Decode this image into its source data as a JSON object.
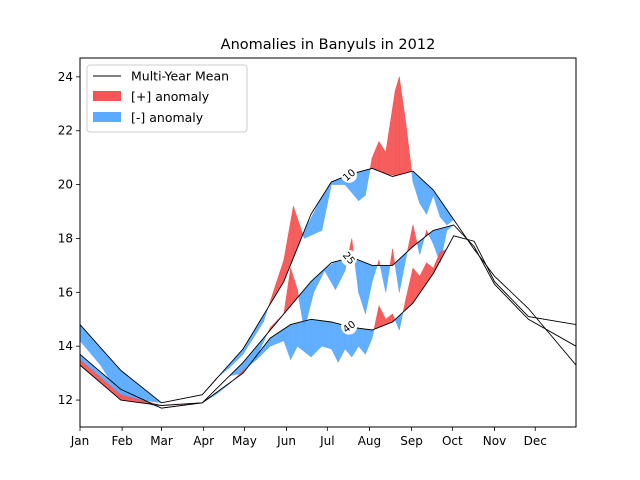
{
  "chart_data": {
    "type": "area",
    "title": "Anomalies in Banyuls in 2012",
    "xlabel": "",
    "ylabel": "",
    "x_ticks": [
      "Jan",
      "Feb",
      "Mar",
      "Apr",
      "May",
      "Jun",
      "Jul",
      "Aug",
      "Sep",
      "Oct",
      "Nov",
      "Dec"
    ],
    "xlim": [
      0,
      365
    ],
    "ylim": [
      11.0,
      24.7
    ],
    "y_ticks": [
      12,
      14,
      16,
      18,
      20,
      22,
      24
    ],
    "grid": false,
    "legend_position": "top-left",
    "legend": {
      "mean": "Multi-Year Mean",
      "positive": "[+] anomaly",
      "negative": "[-] anomaly"
    },
    "colors": {
      "positive": "#f65555",
      "negative": "#5aabff",
      "mean_line": "#000000"
    },
    "depth_labels": [
      "10",
      "25",
      "40"
    ],
    "series": [
      {
        "name": "10",
        "mean": [
          [
            0,
            14.8
          ],
          [
            30,
            13.1
          ],
          [
            60,
            11.9
          ],
          [
            90,
            12.2
          ],
          [
            120,
            13.9
          ],
          [
            150,
            16.4
          ],
          [
            170,
            18.9
          ],
          [
            185,
            20.1
          ],
          [
            200,
            20.4
          ],
          [
            215,
            20.6
          ],
          [
            230,
            20.3
          ],
          [
            245,
            20.5
          ],
          [
            260,
            19.8
          ],
          [
            275,
            18.7
          ],
          [
            290,
            17.6
          ],
          [
            305,
            16.6
          ],
          [
            330,
            15.4
          ],
          [
            365,
            13.3
          ]
        ],
        "observed": [
          [
            0,
            14.2
          ],
          [
            15,
            13.3
          ],
          [
            30,
            12.1
          ],
          [
            60,
            11.9
          ],
          [
            90,
            12.2
          ],
          [
            95,
            12.5
          ],
          [
            100,
            12.8
          ],
          [
            110,
            13.2
          ],
          [
            120,
            13.7
          ],
          [
            135,
            14.9
          ],
          [
            150,
            17.2
          ],
          [
            157,
            19.2
          ],
          [
            165,
            18.0
          ],
          [
            178,
            18.3
          ],
          [
            185,
            20.0
          ],
          [
            195,
            20.0
          ],
          [
            205,
            19.4
          ],
          [
            210,
            19.6
          ],
          [
            215,
            21.0
          ],
          [
            220,
            21.6
          ],
          [
            225,
            21.2
          ],
          [
            232,
            23.5
          ],
          [
            235,
            24.0
          ],
          [
            240,
            22.2
          ],
          [
            245,
            20.1
          ],
          [
            250,
            19.3
          ],
          [
            255,
            18.9
          ],
          [
            260,
            19.6
          ],
          [
            265,
            18.8
          ],
          [
            270,
            18.5
          ],
          [
            275,
            18.7
          ]
        ]
      },
      {
        "name": "25",
        "mean": [
          [
            0,
            13.7
          ],
          [
            30,
            12.4
          ],
          [
            60,
            11.7
          ],
          [
            90,
            11.9
          ],
          [
            120,
            13.4
          ],
          [
            150,
            15.2
          ],
          [
            170,
            16.4
          ],
          [
            185,
            17.1
          ],
          [
            200,
            17.3
          ],
          [
            215,
            17.0
          ],
          [
            230,
            17.0
          ],
          [
            245,
            17.7
          ],
          [
            260,
            18.3
          ],
          [
            275,
            18.5
          ],
          [
            290,
            17.7
          ],
          [
            305,
            16.3
          ],
          [
            330,
            15.0
          ],
          [
            365,
            14.0
          ]
        ],
        "observed": [
          [
            0,
            13.5
          ],
          [
            30,
            12.2
          ],
          [
            60,
            11.7
          ],
          [
            90,
            11.9
          ],
          [
            100,
            12.4
          ],
          [
            110,
            12.9
          ],
          [
            120,
            13.0
          ],
          [
            130,
            13.6
          ],
          [
            140,
            14.7
          ],
          [
            150,
            15.2
          ],
          [
            155,
            16.9
          ],
          [
            160,
            16.1
          ],
          [
            165,
            14.6
          ],
          [
            172,
            16.0
          ],
          [
            180,
            16.8
          ],
          [
            188,
            16.1
          ],
          [
            195,
            16.8
          ],
          [
            200,
            18.0
          ],
          [
            205,
            16.0
          ],
          [
            210,
            15.2
          ],
          [
            215,
            16.4
          ],
          [
            220,
            17.2
          ],
          [
            225,
            16.0
          ],
          [
            230,
            17.6
          ],
          [
            235,
            16.0
          ],
          [
            240,
            17.3
          ],
          [
            245,
            18.5
          ],
          [
            250,
            17.4
          ],
          [
            255,
            18.3
          ],
          [
            260,
            17.8
          ],
          [
            265,
            17.1
          ],
          [
            270,
            18.3
          ],
          [
            275,
            18.5
          ]
        ]
      },
      {
        "name": "40",
        "mean": [
          [
            0,
            13.3
          ],
          [
            30,
            12.0
          ],
          [
            60,
            11.8
          ],
          [
            90,
            11.9
          ],
          [
            120,
            13.0
          ],
          [
            140,
            14.3
          ],
          [
            155,
            14.8
          ],
          [
            170,
            15.0
          ],
          [
            185,
            14.9
          ],
          [
            200,
            14.7
          ],
          [
            215,
            14.6
          ],
          [
            230,
            14.9
          ],
          [
            245,
            15.6
          ],
          [
            260,
            16.7
          ],
          [
            275,
            18.1
          ],
          [
            290,
            17.9
          ],
          [
            305,
            16.4
          ],
          [
            330,
            15.1
          ],
          [
            365,
            14.8
          ]
        ],
        "observed": [
          [
            0,
            13.5
          ],
          [
            30,
            12.2
          ],
          [
            60,
            11.8
          ],
          [
            90,
            11.9
          ],
          [
            100,
            12.2
          ],
          [
            110,
            12.6
          ],
          [
            120,
            13.1
          ],
          [
            130,
            13.5
          ],
          [
            140,
            14.0
          ],
          [
            150,
            14.2
          ],
          [
            155,
            13.5
          ],
          [
            160,
            14.0
          ],
          [
            165,
            13.8
          ],
          [
            170,
            13.6
          ],
          [
            178,
            14.0
          ],
          [
            185,
            13.9
          ],
          [
            190,
            13.4
          ],
          [
            195,
            13.9
          ],
          [
            200,
            13.6
          ],
          [
            205,
            14.0
          ],
          [
            210,
            13.7
          ],
          [
            215,
            14.3
          ],
          [
            220,
            15.5
          ],
          [
            225,
            15.0
          ],
          [
            230,
            15.2
          ],
          [
            235,
            14.6
          ],
          [
            240,
            15.8
          ],
          [
            245,
            16.9
          ],
          [
            250,
            16.6
          ],
          [
            255,
            17.1
          ],
          [
            260,
            16.9
          ],
          [
            265,
            17.5
          ],
          [
            270,
            17.6
          ],
          [
            275,
            18.1
          ]
        ]
      }
    ]
  }
}
